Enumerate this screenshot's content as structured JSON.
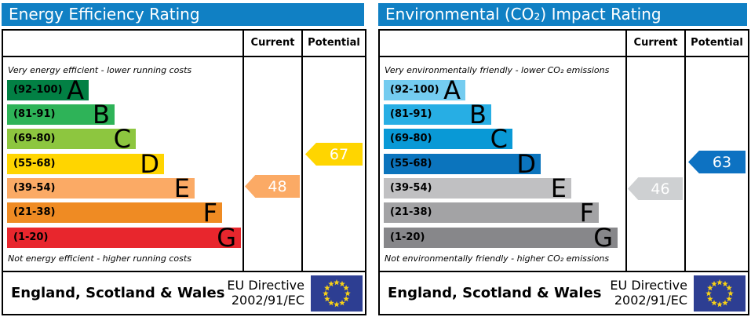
{
  "panels": [
    {
      "title": "Energy Efficiency Rating",
      "header_color": "#1080c4",
      "columns": {
        "current": "Current",
        "potential": "Potential"
      },
      "top_caption": "Very energy efficient - lower running costs",
      "bottom_caption": "Not energy efficient - higher running costs",
      "bands": [
        {
          "letter": "A",
          "range": "(92-100)",
          "color": "#028044"
        },
        {
          "letter": "B",
          "range": "(81-91)",
          "color": "#2eb358"
        },
        {
          "letter": "C",
          "range": "(69-80)",
          "color": "#8dc63f"
        },
        {
          "letter": "D",
          "range": "(55-68)",
          "color": "#ffd500"
        },
        {
          "letter": "E",
          "range": "(39-54)",
          "color": "#fbaa65"
        },
        {
          "letter": "F",
          "range": "(21-38)",
          "color": "#ef8b23"
        },
        {
          "letter": "G",
          "range": "(1-20)",
          "color": "#e8262d"
        }
      ],
      "current": {
        "value": 48,
        "band": "E",
        "color": "#fbaa65"
      },
      "potential": {
        "value": 67,
        "band": "D",
        "color": "#ffd500"
      },
      "footer": {
        "region": "England, Scotland & Wales",
        "directive_line1": "EU Directive",
        "directive_line2": "2002/91/EC",
        "flag_colors": {
          "field": "#2d3e92",
          "stars": "#f7d117"
        }
      }
    },
    {
      "title": "Environmental (CO₂) Impact Rating",
      "header_color": "#1080c4",
      "columns": {
        "current": "Current",
        "potential": "Potential"
      },
      "top_caption": "Very environmentally friendly - lower CO₂ emissions",
      "bottom_caption": "Not environmentally friendly - higher CO₂ emissions",
      "bands": [
        {
          "letter": "A",
          "range": "(92-100)",
          "color": "#74ccf0"
        },
        {
          "letter": "B",
          "range": "(81-91)",
          "color": "#27aee4"
        },
        {
          "letter": "C",
          "range": "(69-80)",
          "color": "#0999d6"
        },
        {
          "letter": "D",
          "range": "(55-68)",
          "color": "#0b74bd"
        },
        {
          "letter": "E",
          "range": "(39-54)",
          "color": "#c0c0c2"
        },
        {
          "letter": "F",
          "range": "(21-38)",
          "color": "#a3a3a5"
        },
        {
          "letter": "G",
          "range": "(1-20)",
          "color": "#87878a"
        }
      ],
      "current": {
        "value": 46,
        "band": "E",
        "color": "#ced0d2"
      },
      "potential": {
        "value": 63,
        "band": "D",
        "color": "#0d72c2"
      },
      "footer": {
        "region": "England, Scotland & Wales",
        "directive_line1": "EU Directive",
        "directive_line2": "2002/91/EC",
        "flag_colors": {
          "field": "#2d3e92",
          "stars": "#f7d117"
        }
      }
    }
  ],
  "chart_data": [
    {
      "type": "bar",
      "title": "Energy Efficiency Rating",
      "categories": [
        "A (92-100)",
        "B (81-91)",
        "C (69-80)",
        "D (55-68)",
        "E (39-54)",
        "F (21-38)",
        "G (1-20)"
      ],
      "series": [
        {
          "name": "Current",
          "values": [
            48
          ],
          "band": "E"
        },
        {
          "name": "Potential",
          "values": [
            67
          ],
          "band": "D"
        }
      ],
      "xlabel": "",
      "ylabel": "",
      "value_range": [
        1,
        100
      ],
      "legend": [
        "Current",
        "Potential"
      ],
      "annotations": [
        "Very energy efficient - lower running costs",
        "Not energy efficient - higher running costs"
      ]
    },
    {
      "type": "bar",
      "title": "Environmental (CO₂) Impact Rating",
      "categories": [
        "A (92-100)",
        "B (81-91)",
        "C (69-80)",
        "D (55-68)",
        "E (39-54)",
        "F (21-38)",
        "G (1-20)"
      ],
      "series": [
        {
          "name": "Current",
          "values": [
            46
          ],
          "band": "E"
        },
        {
          "name": "Potential",
          "values": [
            63
          ],
          "band": "D"
        }
      ],
      "xlabel": "",
      "ylabel": "",
      "value_range": [
        1,
        100
      ],
      "legend": [
        "Current",
        "Potential"
      ],
      "annotations": [
        "Very environmentally friendly - lower CO₂ emissions",
        "Not environmentally friendly - higher CO₂ emissions"
      ]
    }
  ]
}
